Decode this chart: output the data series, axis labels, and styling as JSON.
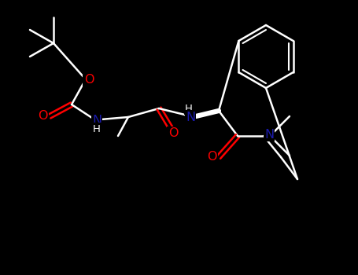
{
  "bg": "#000000",
  "wh": "#ffffff",
  "O": "#ff0000",
  "N": "#1a1aaa",
  "lw": 1.8,
  "fs": 11.5,
  "fs_small": 9.5
}
